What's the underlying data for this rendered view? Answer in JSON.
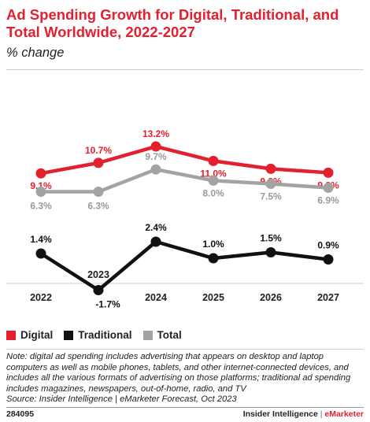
{
  "title": "Ad Spending Growth for Digital, Traditional, and Total Worldwide, 2022-2027",
  "subtitle": "% change",
  "legend": [
    {
      "label": "Digital",
      "color": "#e5202e"
    },
    {
      "label": "Traditional",
      "color": "#111111"
    },
    {
      "label": "Total",
      "color": "#a3a3a3"
    }
  ],
  "note": "Note: digital ad spending includes advertising that appears on desktop and laptop computers as well as mobile phones, tablets, and other internet-connected devices, and includes all the various formats of advertising on those platforms; traditional ad spending includes magazines, newspapers, out-of-home, radio, and TV",
  "source": "Source: Insider Intelligence | eMarketer Forecast, Oct 2023",
  "footer": {
    "chart_id": "284095",
    "brand_main": "Insider Intelligence",
    "brand_sep": " | ",
    "brand_em": "eMarketer"
  },
  "chart_data": {
    "type": "line",
    "categories": [
      "2022",
      "2023",
      "2024",
      "2025",
      "2026",
      "2027"
    ],
    "series": [
      {
        "name": "Digital",
        "color": "#e5202e",
        "values": [
          9.1,
          10.7,
          13.2,
          11.0,
          9.8,
          9.2
        ],
        "labels": [
          "9.1%",
          "10.7%",
          "13.2%",
          "11.0%",
          "9.8%",
          "9.2%"
        ]
      },
      {
        "name": "Total",
        "color": "#a3a3a3",
        "values": [
          6.3,
          6.3,
          9.7,
          8.0,
          7.5,
          6.9
        ],
        "labels": [
          "6.3%",
          "6.3%",
          "9.7%",
          "8.0%",
          "7.5%",
          "6.9%"
        ]
      },
      {
        "name": "Traditional",
        "color": "#111111",
        "values": [
          1.4,
          -1.7,
          2.4,
          1.0,
          1.5,
          0.9
        ],
        "labels": [
          "1.4%",
          "-1.7%",
          "2.4%",
          "1.0%",
          "1.5%",
          "0.9%"
        ]
      }
    ]
  }
}
